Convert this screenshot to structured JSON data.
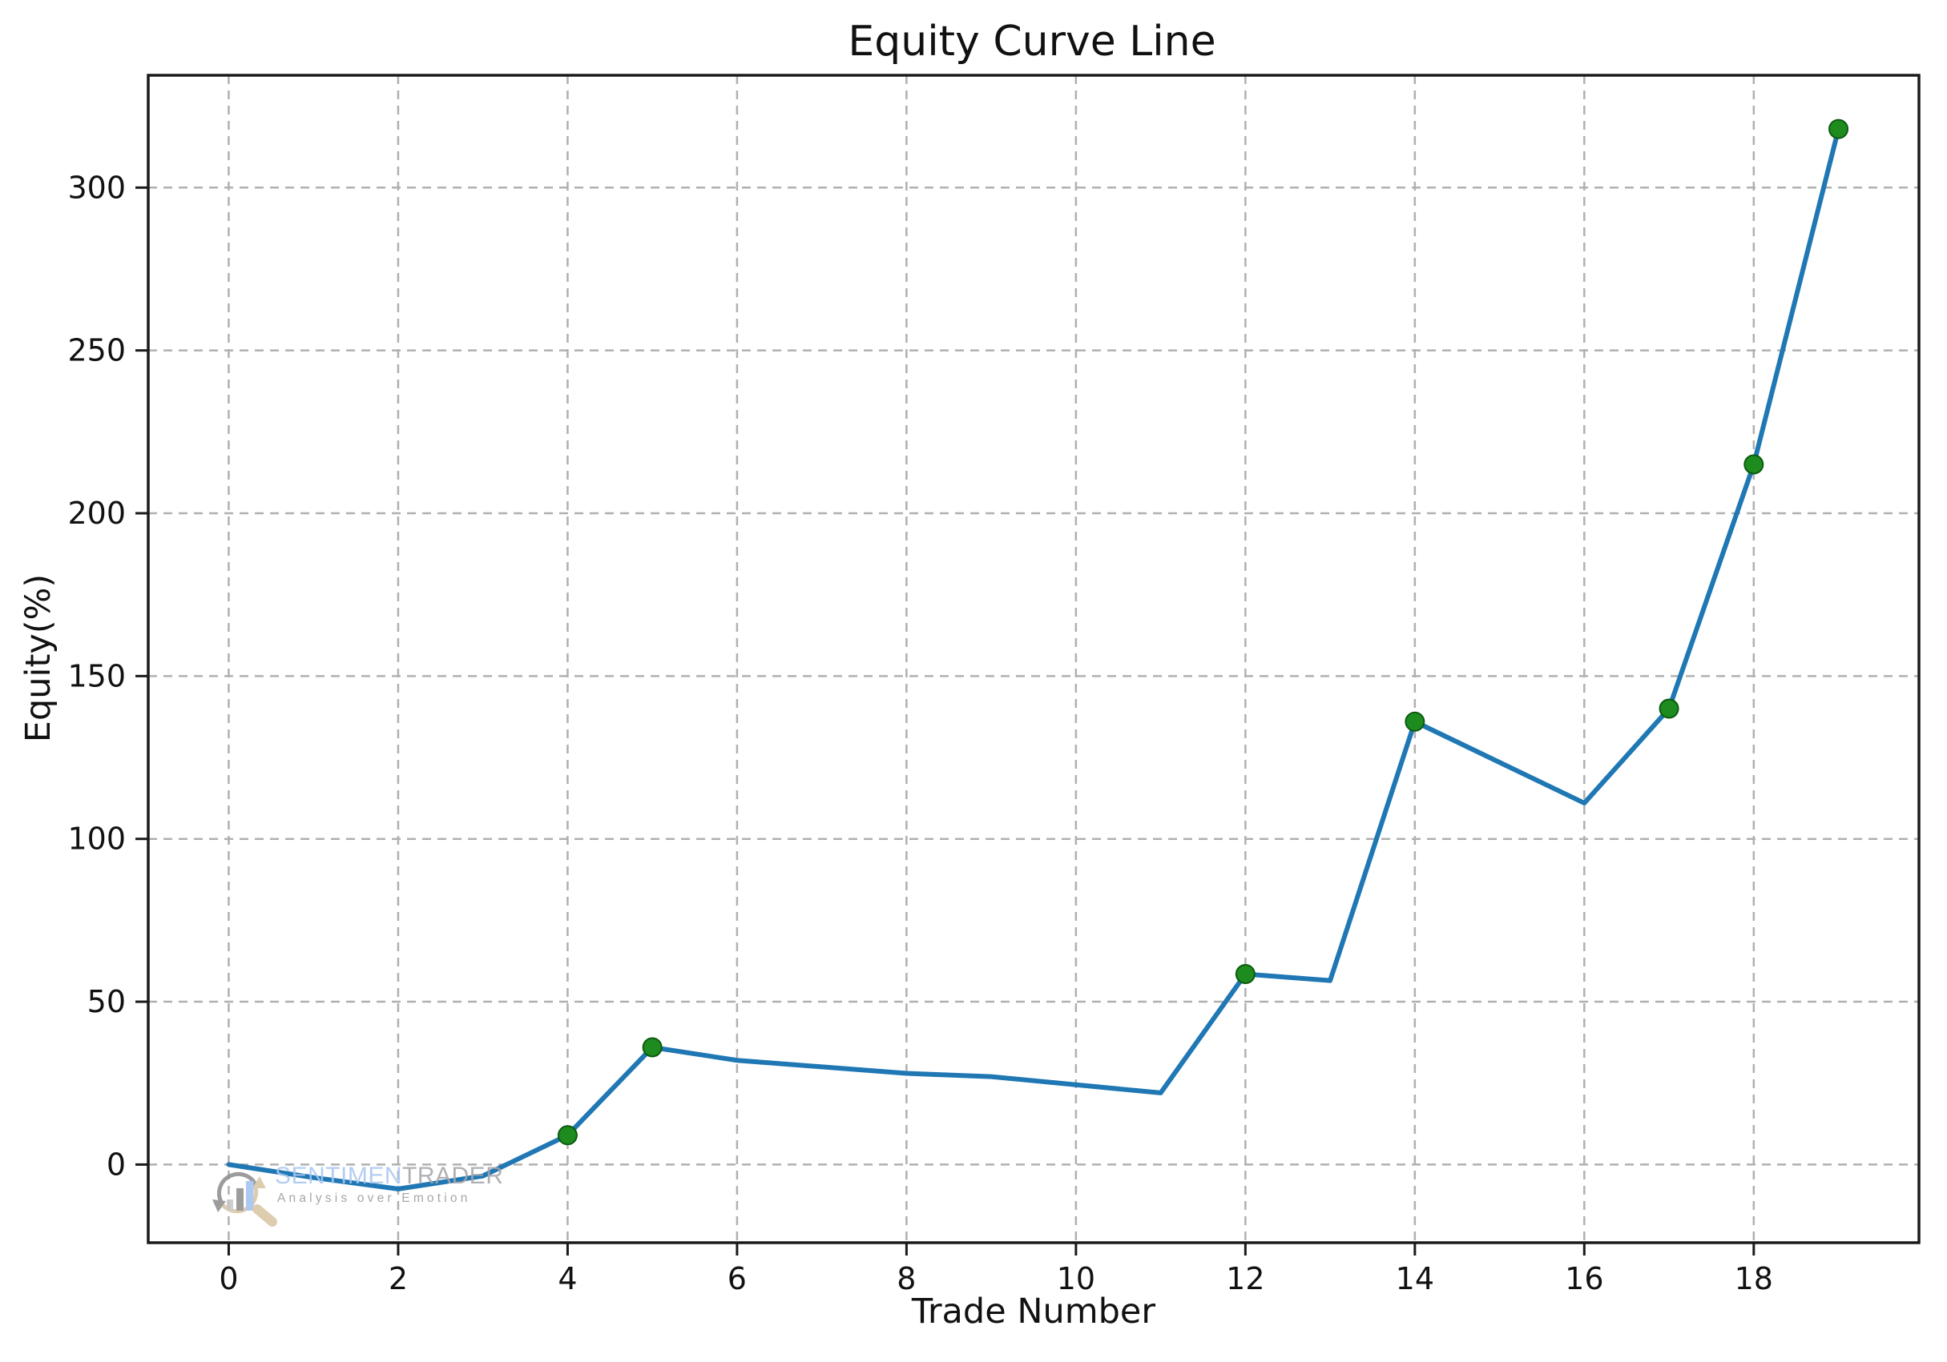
{
  "figure": {
    "background": "#ffffff",
    "title": "Equity Curve Line"
  },
  "chart_data": {
    "type": "line",
    "title": "Equity Curve Line",
    "xlabel": "Trade Number",
    "ylabel": "Equity(%)",
    "x": [
      0,
      1,
      2,
      3,
      4,
      5,
      6,
      7,
      8,
      9,
      10,
      11,
      12,
      13,
      14,
      15,
      16,
      17,
      18,
      19
    ],
    "y": [
      0,
      -4,
      -7.5,
      -3.5,
      9,
      36,
      32,
      30,
      28,
      27,
      24.5,
      22,
      58.5,
      56.5,
      136,
      123.5,
      111,
      140,
      215,
      318
    ],
    "marker_x": [
      4,
      5,
      12,
      14,
      17,
      18,
      19
    ],
    "xticks": [
      0,
      2,
      4,
      6,
      8,
      10,
      12,
      14,
      16,
      18
    ],
    "yticks": [
      0,
      50,
      100,
      150,
      200,
      250,
      300
    ],
    "xlim": [
      -0.95,
      19.95
    ],
    "ylim": [
      -24,
      334.5
    ],
    "grid": true,
    "grid_style": "dashed",
    "legend": false,
    "line_color": "#1f77b4",
    "marker_color": "#1e8b1e",
    "marker_edge_color": "#0b5b10",
    "grid_color": "#b0b0b0",
    "axis_color": "#1a1a1a",
    "tick_label_color": "#111111"
  },
  "watermark": {
    "brand_blue": "SENTIMEN",
    "brand_gray": "TRADER",
    "tagline": "Analysis over Emotion",
    "logo_colors": {
      "arc_gray": "#8f8f8f",
      "arc_tan": "#d9c6a2",
      "bar_light_gray": "#c8c8c8",
      "bar_dark_gray": "#8f8f8f",
      "bar_blue": "#a2c1f0"
    }
  }
}
